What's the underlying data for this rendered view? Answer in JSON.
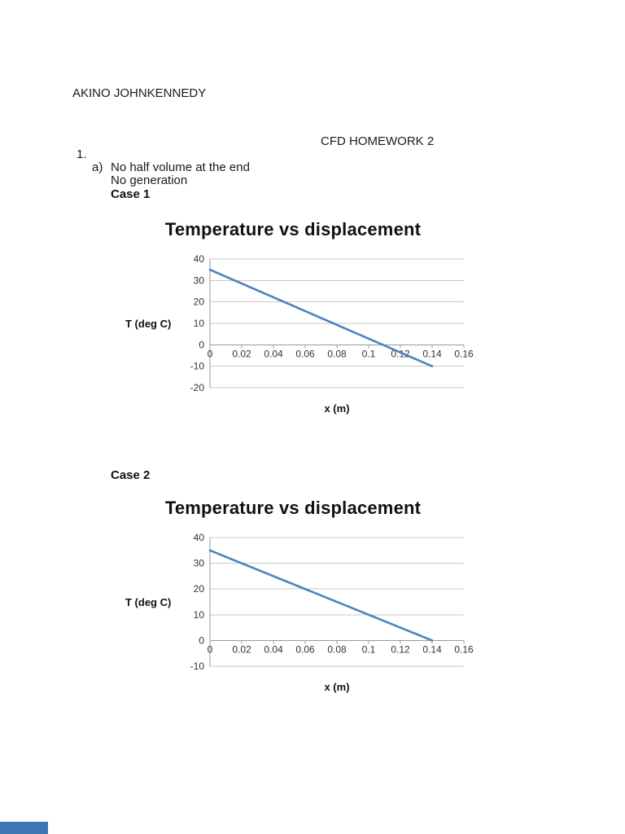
{
  "document": {
    "author": "AKINO JOHNKENNEDY",
    "heading": "CFD HOMEWORK 2",
    "list_number": "1.",
    "item_a_letter": "a)",
    "item_a_text": "No half volume at the end",
    "item_a_text2": "No generation",
    "case_1_label": "Case 1",
    "case_2_label": "Case 2"
  },
  "footer_strip_color": "#3f76b4",
  "chart_data": [
    {
      "case": "Case 1",
      "type": "line",
      "title": "Temperature vs displacement",
      "xlabel": "x (m)",
      "ylabel": "T (deg C)",
      "xlim": [
        0,
        0.16
      ],
      "ylim": [
        -20,
        40
      ],
      "xticks": [
        0,
        0.02,
        0.04,
        0.06,
        0.08,
        0.1,
        0.12,
        0.14,
        0.16
      ],
      "xtick_labels": [
        "0",
        "0.02",
        "0.04",
        "0.06",
        "0.08",
        "0.1",
        "0.12",
        "0.14",
        "0.16"
      ],
      "yticks": [
        40,
        30,
        20,
        10,
        0,
        -10,
        -20
      ],
      "ytick_labels": [
        "40",
        "30",
        "20",
        "10",
        "0",
        "-10",
        "-20"
      ],
      "grid": true,
      "grid_color": "#c9c9c9",
      "axis_color": "#9b9b9b",
      "legend": false,
      "series": [
        {
          "name": "Temperature",
          "color": "#4f81bd",
          "x": [
            0,
            0.14
          ],
          "y": [
            35,
            -10
          ]
        }
      ]
    },
    {
      "case": "Case 2",
      "type": "line",
      "title": "Temperature vs displacement",
      "xlabel": "x (m)",
      "ylabel": "T (deg C)",
      "xlim": [
        0,
        0.16
      ],
      "ylim": [
        -10,
        40
      ],
      "xticks": [
        0,
        0.02,
        0.04,
        0.06,
        0.08,
        0.1,
        0.12,
        0.14,
        0.16
      ],
      "xtick_labels": [
        "0",
        "0.02",
        "0.04",
        "0.06",
        "0.08",
        "0.1",
        "0.12",
        "0.14",
        "0.16"
      ],
      "yticks": [
        40,
        30,
        20,
        10,
        0,
        -10
      ],
      "ytick_labels": [
        "40",
        "30",
        "20",
        "10",
        "0",
        "-10"
      ],
      "grid": true,
      "grid_color": "#c9c9c9",
      "axis_color": "#9b9b9b",
      "legend": false,
      "series": [
        {
          "name": "Temperature",
          "color": "#4f81bd",
          "x": [
            0,
            0.14
          ],
          "y": [
            35,
            0
          ]
        }
      ]
    }
  ]
}
